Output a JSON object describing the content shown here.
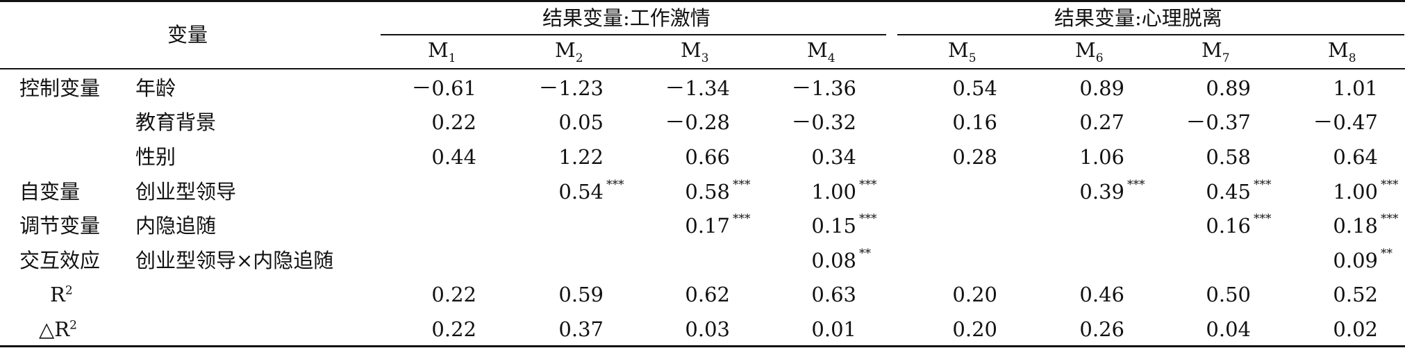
{
  "header": {
    "variable_label": "变量",
    "group_a_title": "结果变量:工作激情",
    "group_b_title": "结果变量:心理脱离",
    "models": [
      {
        "base": "M",
        "sub": "1"
      },
      {
        "base": "M",
        "sub": "2"
      },
      {
        "base": "M",
        "sub": "3"
      },
      {
        "base": "M",
        "sub": "4"
      },
      {
        "base": "M",
        "sub": "5"
      },
      {
        "base": "M",
        "sub": "6"
      },
      {
        "base": "M",
        "sub": "7"
      },
      {
        "base": "M",
        "sub": "8"
      }
    ]
  },
  "rows": [
    {
      "category": "控制变量",
      "variable": "年龄",
      "cells": [
        {
          "v": "－0.61",
          "s": ""
        },
        {
          "v": "－1.23",
          "s": ""
        },
        {
          "v": "－1.34",
          "s": ""
        },
        {
          "v": "－1.36",
          "s": ""
        },
        {
          "v": "0.54",
          "s": ""
        },
        {
          "v": "0.89",
          "s": ""
        },
        {
          "v": "0.89",
          "s": ""
        },
        {
          "v": "1.01",
          "s": ""
        }
      ]
    },
    {
      "category": "",
      "variable": "教育背景",
      "cells": [
        {
          "v": "0.22",
          "s": ""
        },
        {
          "v": "0.05",
          "s": ""
        },
        {
          "v": "－0.28",
          "s": ""
        },
        {
          "v": "－0.32",
          "s": ""
        },
        {
          "v": "0.16",
          "s": ""
        },
        {
          "v": "0.27",
          "s": ""
        },
        {
          "v": "－0.37",
          "s": ""
        },
        {
          "v": "－0.47",
          "s": ""
        }
      ]
    },
    {
      "category": "",
      "variable": "性别",
      "cells": [
        {
          "v": "0.44",
          "s": ""
        },
        {
          "v": "1.22",
          "s": ""
        },
        {
          "v": "0.66",
          "s": ""
        },
        {
          "v": "0.34",
          "s": ""
        },
        {
          "v": "0.28",
          "s": ""
        },
        {
          "v": "1.06",
          "s": ""
        },
        {
          "v": "0.58",
          "s": ""
        },
        {
          "v": "0.64",
          "s": ""
        }
      ]
    },
    {
      "category": "自变量",
      "variable": "创业型领导",
      "cells": [
        {
          "v": "",
          "s": ""
        },
        {
          "v": "0.54",
          "s": "***"
        },
        {
          "v": "0.58",
          "s": "***"
        },
        {
          "v": "1.00",
          "s": "***"
        },
        {
          "v": "",
          "s": ""
        },
        {
          "v": "0.39",
          "s": "***"
        },
        {
          "v": "0.45",
          "s": "***"
        },
        {
          "v": "1.00",
          "s": "***"
        }
      ]
    },
    {
      "category": "调节变量",
      "variable": "内隐追随",
      "cells": [
        {
          "v": "",
          "s": ""
        },
        {
          "v": "",
          "s": ""
        },
        {
          "v": "0.17",
          "s": "***"
        },
        {
          "v": "0.15",
          "s": "***"
        },
        {
          "v": "",
          "s": ""
        },
        {
          "v": "",
          "s": ""
        },
        {
          "v": "0.16",
          "s": "***"
        },
        {
          "v": "0.18",
          "s": "***"
        }
      ]
    },
    {
      "category": "交互效应",
      "variable": "创业型领导×内隐追随",
      "cells": [
        {
          "v": "",
          "s": ""
        },
        {
          "v": "",
          "s": ""
        },
        {
          "v": "",
          "s": ""
        },
        {
          "v": "0.08",
          "s": "**"
        },
        {
          "v": "",
          "s": ""
        },
        {
          "v": "",
          "s": ""
        },
        {
          "v": "",
          "s": ""
        },
        {
          "v": "0.09",
          "s": "**"
        }
      ]
    },
    {
      "category": "R",
      "category_sup": "2",
      "variable": "",
      "cells": [
        {
          "v": "0.22",
          "s": ""
        },
        {
          "v": "0.59",
          "s": ""
        },
        {
          "v": "0.62",
          "s": ""
        },
        {
          "v": "0.63",
          "s": ""
        },
        {
          "v": "0.20",
          "s": ""
        },
        {
          "v": "0.46",
          "s": ""
        },
        {
          "v": "0.50",
          "s": ""
        },
        {
          "v": "0.52",
          "s": ""
        }
      ]
    },
    {
      "category": "△R",
      "category_sup": "2",
      "variable": "",
      "cells": [
        {
          "v": "0.22",
          "s": ""
        },
        {
          "v": "0.37",
          "s": ""
        },
        {
          "v": "0.03",
          "s": ""
        },
        {
          "v": "0.01",
          "s": ""
        },
        {
          "v": "0.20",
          "s": ""
        },
        {
          "v": "0.26",
          "s": ""
        },
        {
          "v": "0.04",
          "s": ""
        },
        {
          "v": "0.02",
          "s": ""
        }
      ]
    }
  ]
}
